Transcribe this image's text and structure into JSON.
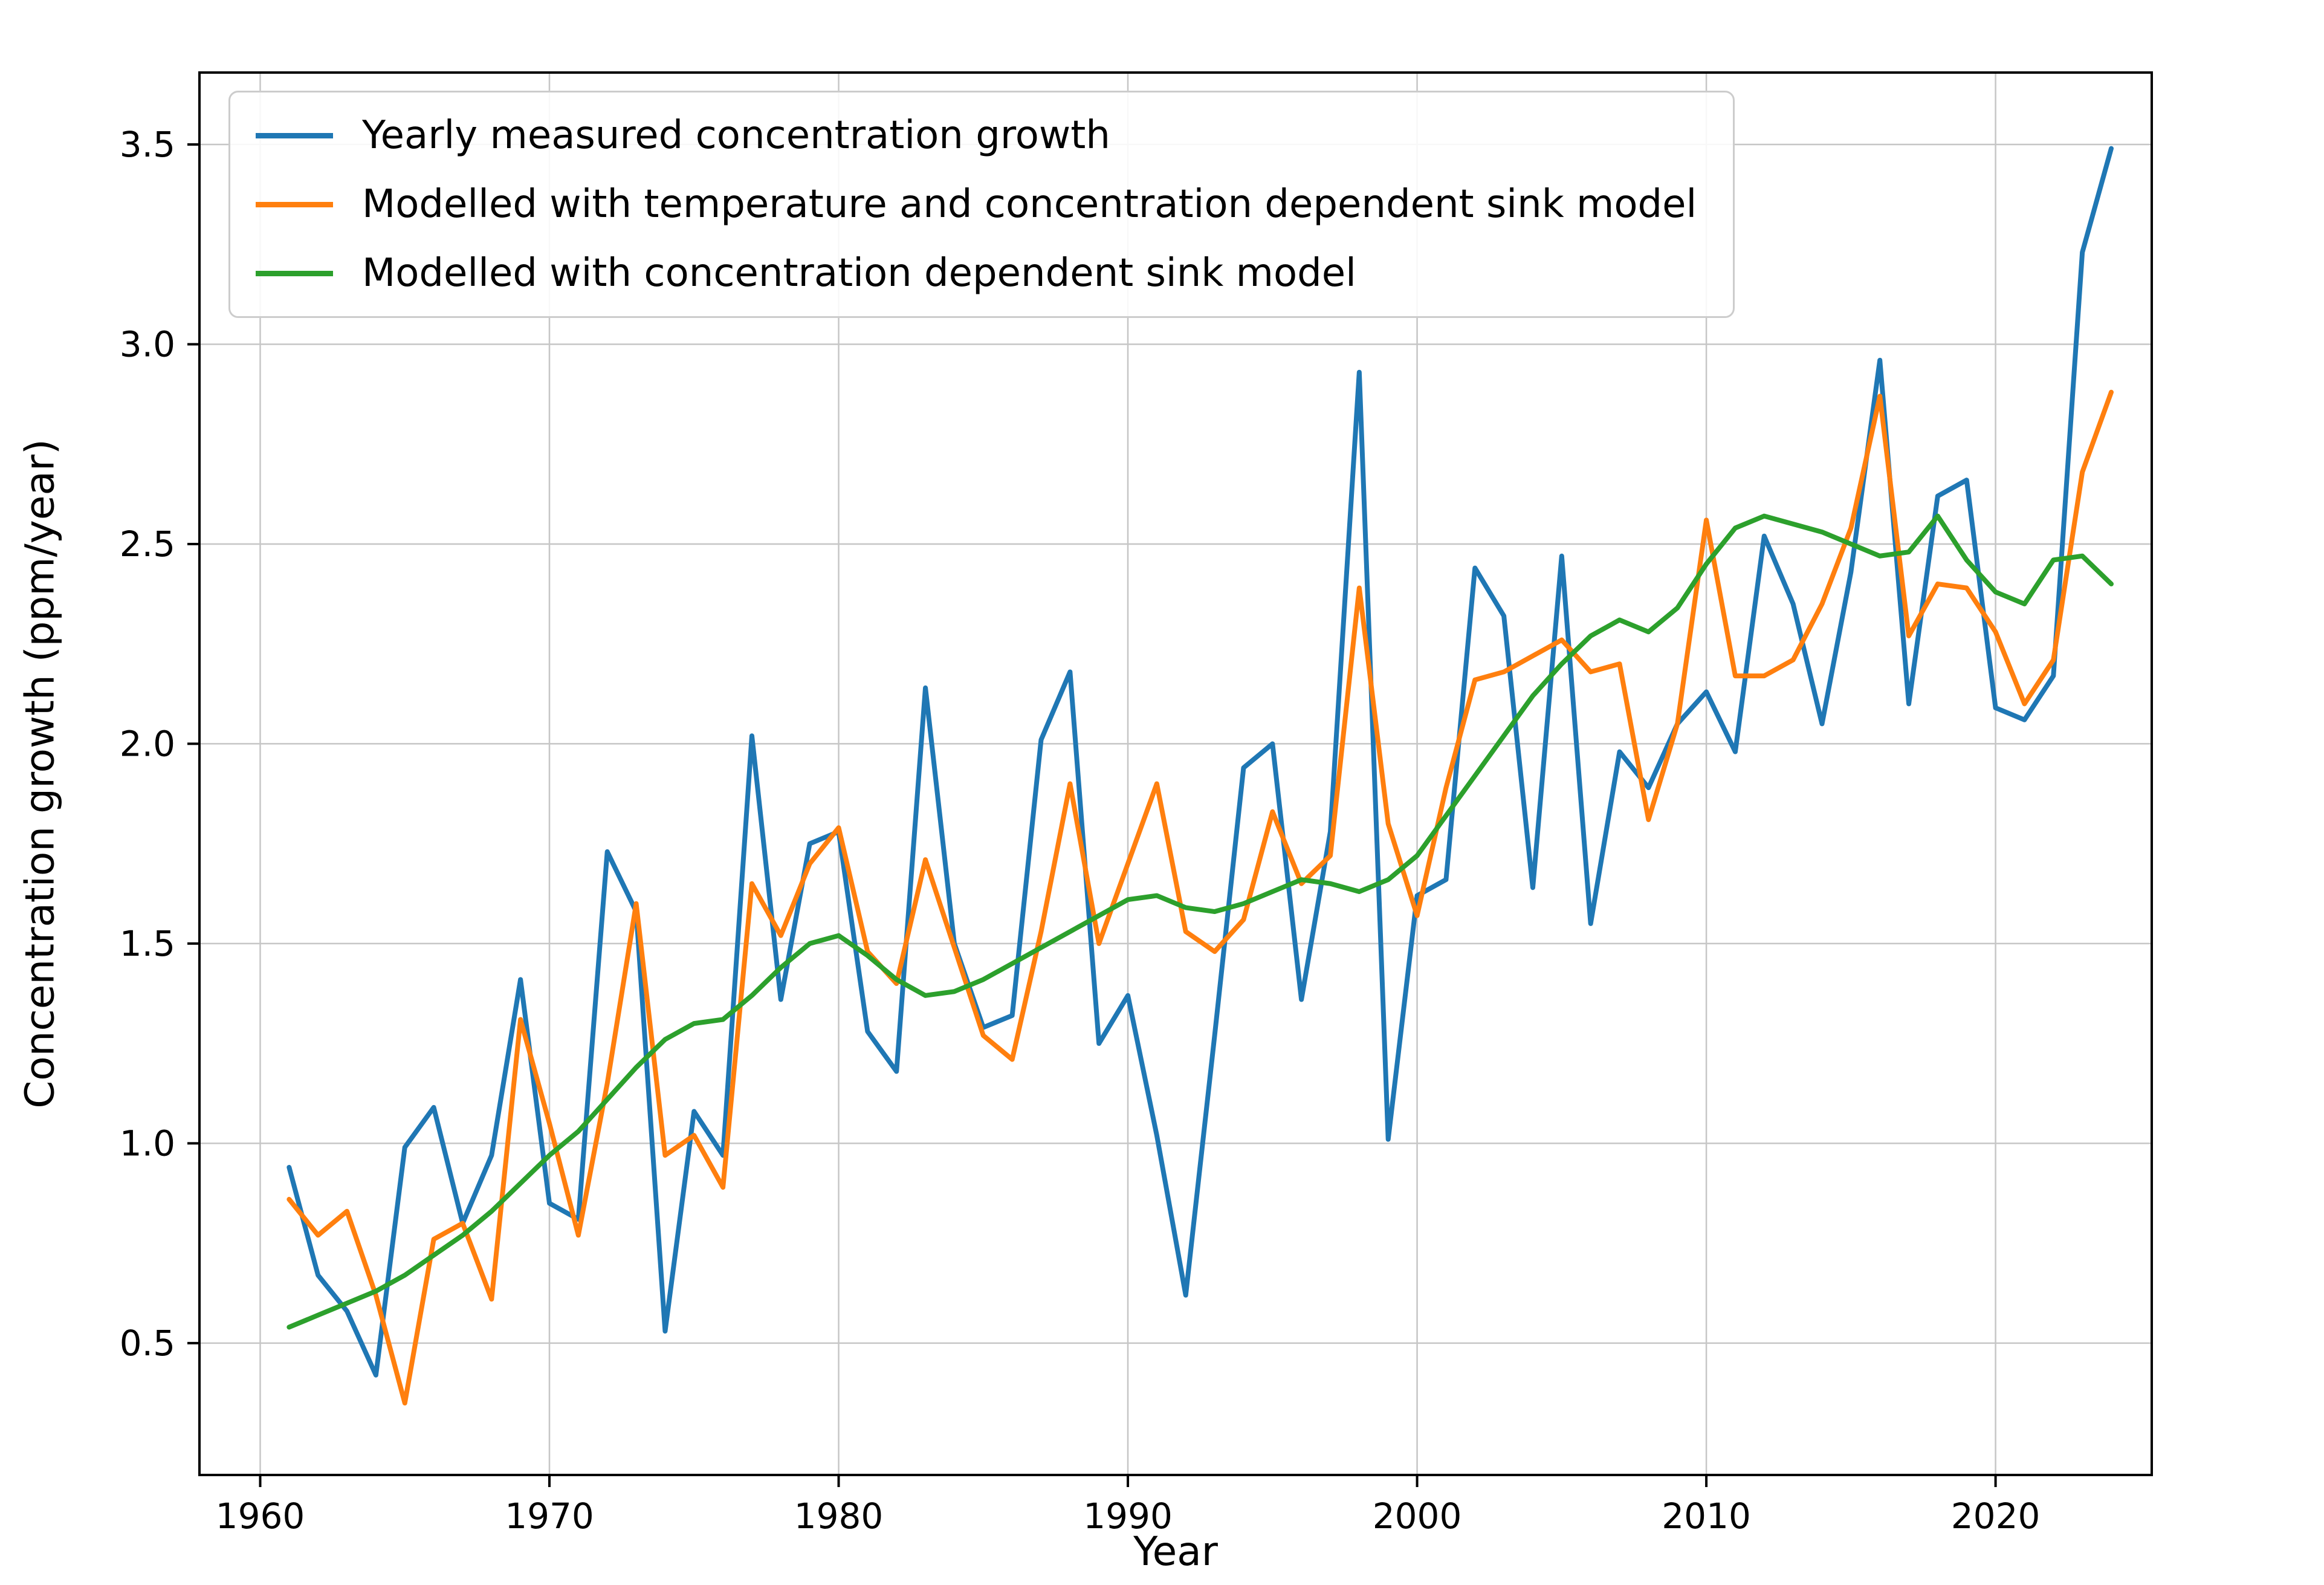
{
  "chart_data": {
    "type": "line",
    "title": "",
    "xlabel": "Year",
    "ylabel": "Concentration growth (ppm/year)",
    "grid": true,
    "legend_position": "upper left",
    "xlim": [
      1957.9,
      2025.4
    ],
    "ylim": [
      0.17,
      3.68
    ],
    "x_ticks": [
      1960,
      1970,
      1980,
      1990,
      2000,
      2010,
      2020
    ],
    "y_ticks": [
      0.5,
      1.0,
      1.5,
      2.0,
      2.5,
      3.0,
      3.5
    ],
    "x": [
      1961,
      1962,
      1963,
      1964,
      1965,
      1966,
      1967,
      1968,
      1969,
      1970,
      1971,
      1972,
      1973,
      1974,
      1975,
      1976,
      1977,
      1978,
      1979,
      1980,
      1981,
      1982,
      1983,
      1984,
      1985,
      1986,
      1987,
      1988,
      1989,
      1990,
      1991,
      1992,
      1993,
      1994,
      1995,
      1996,
      1997,
      1998,
      1999,
      2000,
      2001,
      2002,
      2003,
      2004,
      2005,
      2006,
      2007,
      2008,
      2009,
      2010,
      2011,
      2012,
      2013,
      2014,
      2015,
      2016,
      2017,
      2018,
      2019,
      2020,
      2021,
      2022,
      2023,
      2024
    ],
    "series": [
      {
        "name": "Yearly measured concentration growth",
        "color": "#1f77b4",
        "values": [
          0.94,
          0.67,
          0.58,
          0.42,
          0.99,
          1.09,
          0.8,
          0.97,
          1.41,
          0.85,
          0.81,
          1.73,
          1.58,
          0.53,
          1.08,
          0.97,
          2.02,
          1.36,
          1.75,
          1.78,
          1.28,
          1.18,
          2.14,
          1.5,
          1.29,
          1.32,
          2.01,
          2.18,
          1.25,
          1.37,
          1.02,
          0.62,
          1.27,
          1.94,
          2.0,
          1.36,
          1.78,
          2.93,
          1.01,
          1.62,
          1.66,
          2.44,
          2.32,
          1.64,
          2.47,
          1.55,
          1.98,
          1.89,
          2.05,
          2.13,
          1.98,
          2.52,
          2.35,
          2.05,
          2.43,
          2.96,
          2.1,
          2.62,
          2.66,
          2.09,
          2.06,
          2.17,
          3.23,
          3.49
        ]
      },
      {
        "name": "Modelled with temperature and concentration dependent sink model",
        "color": "#ff7f0e",
        "values": [
          0.86,
          0.77,
          0.83,
          0.62,
          0.35,
          0.76,
          0.8,
          0.61,
          1.31,
          1.05,
          0.77,
          1.15,
          1.6,
          0.97,
          1.02,
          0.89,
          1.65,
          1.52,
          1.7,
          1.79,
          1.48,
          1.4,
          1.71,
          1.49,
          1.27,
          1.21,
          1.53,
          1.9,
          1.5,
          1.7,
          1.9,
          1.53,
          1.48,
          1.56,
          1.83,
          1.65,
          1.72,
          2.39,
          1.8,
          1.57,
          1.89,
          2.16,
          2.18,
          2.22,
          2.26,
          2.18,
          2.2,
          1.81,
          2.05,
          2.56,
          2.17,
          2.17,
          2.21,
          2.35,
          2.54,
          2.87,
          2.27,
          2.4,
          2.39,
          2.28,
          2.1,
          2.21,
          2.68,
          2.88
        ]
      },
      {
        "name": "Modelled with concentration dependent sink model",
        "color": "#2ca02c",
        "values": [
          0.54,
          0.57,
          0.6,
          0.63,
          0.67,
          0.72,
          0.77,
          0.83,
          0.9,
          0.97,
          1.03,
          1.11,
          1.19,
          1.26,
          1.3,
          1.31,
          1.37,
          1.44,
          1.5,
          1.52,
          1.47,
          1.41,
          1.37,
          1.38,
          1.41,
          1.45,
          1.49,
          1.53,
          1.57,
          1.61,
          1.62,
          1.59,
          1.58,
          1.6,
          1.63,
          1.66,
          1.65,
          1.63,
          1.66,
          1.72,
          1.82,
          1.92,
          2.02,
          2.12,
          2.2,
          2.27,
          2.31,
          2.28,
          2.34,
          2.45,
          2.54,
          2.57,
          2.55,
          2.53,
          2.5,
          2.47,
          2.48,
          2.57,
          2.46,
          2.38,
          2.35,
          2.46,
          2.47,
          2.4
        ]
      }
    ],
    "plot_style": {
      "grid_color": "#c6c6c6",
      "spine_color": "#000000",
      "tick_color": "#000000",
      "background": "#ffffff",
      "line_width": 8
    }
  }
}
